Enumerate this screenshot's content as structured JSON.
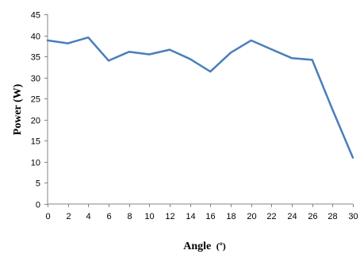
{
  "chart_data": {
    "type": "line",
    "title": "",
    "xlabel": "Angle",
    "xlabel_unit": "(º)",
    "ylabel": "Power (W)",
    "xlim": [
      0,
      30
    ],
    "ylim": [
      0,
      45
    ],
    "x_ticks": [
      0,
      2,
      4,
      6,
      8,
      10,
      12,
      14,
      16,
      18,
      20,
      22,
      24,
      26,
      28,
      30
    ],
    "y_ticks": [
      0,
      5,
      10,
      15,
      20,
      25,
      30,
      35,
      40,
      45
    ],
    "grid": false,
    "legend": "none",
    "line_color": "#4a7ebb",
    "series": [
      {
        "x": [
          0,
          2,
          4,
          6,
          8,
          10,
          12,
          14,
          16,
          18,
          20,
          22,
          24,
          26,
          28,
          30
        ],
        "y": [
          38.8,
          38.1,
          39.5,
          34.0,
          36.1,
          35.5,
          36.6,
          34.4,
          31.4,
          35.9,
          38.8,
          36.7,
          34.6,
          34.2,
          22.4,
          11.0
        ]
      }
    ]
  }
}
